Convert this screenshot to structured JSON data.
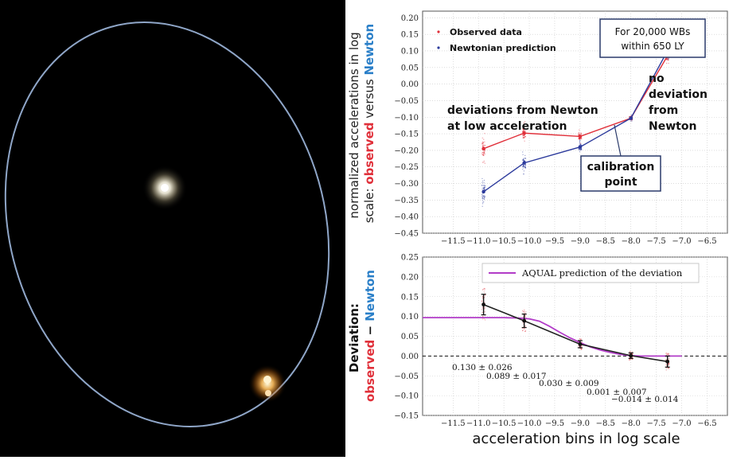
{
  "orbit_image": {
    "colors": {
      "orbit": "#8fa6c8",
      "star_white": "#ffffff",
      "star_orange": "#ffb347",
      "background": "#000000"
    }
  },
  "chart_data": [
    {
      "type": "line",
      "ylabel_parts": [
        "normalized accelerations in log",
        "scale: ",
        "observed",
        " versus ",
        "Newton"
      ],
      "xlim": [
        -12.1,
        -6.1
      ],
      "ylim": [
        -0.45,
        0.22
      ],
      "xticks": [
        -11.5,
        -11.0,
        -10.5,
        -10.0,
        -9.5,
        -9.0,
        -8.5,
        -8.0,
        -7.5,
        -7.0,
        -6.5
      ],
      "xtick_labels": [
        "−11.5",
        "−11.0",
        "−10.5",
        "−10.0",
        "−9.5",
        "−9.0",
        "−8.5",
        "−8.0",
        "−7.5",
        "−7.0",
        "−6.5"
      ],
      "yticks": [
        -0.45,
        -0.4,
        -0.35,
        -0.3,
        -0.25,
        -0.2,
        -0.15,
        -0.1,
        -0.05,
        0.0,
        0.05,
        0.1,
        0.15,
        0.2
      ],
      "ytick_labels": [
        "−0.45",
        "−0.40",
        "−0.35",
        "−0.30",
        "−0.25",
        "−0.20",
        "−0.15",
        "−0.10",
        "−0.05",
        "0.00",
        "0.05",
        "0.10",
        "0.15",
        "0.20"
      ],
      "legend": {
        "position": "top-left",
        "entries": [
          "Observed data",
          "Newtonian prediction"
        ]
      },
      "series": [
        {
          "name": "Observed data",
          "color": "#e0303a",
          "x": [
            -10.9,
            -10.1,
            -9.0,
            -8.0,
            -7.28
          ],
          "y": [
            -0.195,
            -0.148,
            -0.158,
            -0.103,
            0.085
          ]
        },
        {
          "name": "Newtonian prediction",
          "color": "#2c3a9c",
          "x": [
            -10.9,
            -10.1,
            -9.0,
            -8.0,
            -7.28
          ],
          "y": [
            -0.325,
            -0.238,
            -0.19,
            -0.103,
            0.1
          ]
        }
      ],
      "annotations": {
        "box_top": [
          "For 20,000 WBs",
          "within 650 LY"
        ],
        "deviation_text": [
          "deviations from Newton",
          "at low acceleration"
        ],
        "no_deviation": [
          "no",
          "deviation",
          "from",
          "Newton"
        ],
        "calibration": [
          "calibration",
          "point"
        ]
      }
    },
    {
      "type": "line",
      "xlabel": "acceleration bins in log scale",
      "ylabel_parts": [
        "Deviation:",
        "observed",
        " − ",
        "Newton"
      ],
      "xlim": [
        -12.1,
        -6.1
      ],
      "ylim": [
        -0.15,
        0.25
      ],
      "xticks": [
        -11.5,
        -11.0,
        -10.5,
        -10.0,
        -9.5,
        -9.0,
        -8.5,
        -8.0,
        -7.5,
        -7.0,
        -6.5
      ],
      "xtick_labels": [
        "−11.5",
        "−11.0",
        "−10.5",
        "−10.0",
        "−9.5",
        "−9.0",
        "−8.5",
        "−8.0",
        "−7.5",
        "−7.0",
        "−6.5"
      ],
      "yticks": [
        -0.15,
        -0.1,
        -0.05,
        0.0,
        0.05,
        0.1,
        0.15,
        0.2,
        0.25
      ],
      "ytick_labels": [
        "−0.15",
        "−0.10",
        "−0.05",
        "0.00",
        "0.05",
        "0.10",
        "0.15",
        "0.20",
        "0.25"
      ],
      "legend": {
        "position": "top-right",
        "entries": [
          "AQUAL prediction of the deviation"
        ]
      },
      "series": [
        {
          "name": "observed − Newton",
          "color": "#222222",
          "x": [
            -10.9,
            -10.1,
            -9.0,
            -8.0,
            -7.28
          ],
          "y": [
            0.13,
            0.089,
            0.03,
            0.001,
            -0.014
          ],
          "err": [
            0.026,
            0.017,
            0.009,
            0.007,
            0.014
          ]
        },
        {
          "name": "AQUAL prediction of the deviation",
          "color": "#b23cc8",
          "x": [
            -12.1,
            -10.5,
            -10.2,
            -10.0,
            -9.8,
            -9.6,
            -9.4,
            -9.2,
            -9.0,
            -8.8,
            -8.6,
            -8.4,
            -8.2,
            -8.0,
            -7.8,
            -7.5,
            -7.0
          ],
          "y": [
            0.097,
            0.097,
            0.096,
            0.094,
            0.088,
            0.075,
            0.06,
            0.046,
            0.034,
            0.023,
            0.015,
            0.009,
            0.004,
            0.001,
            0.0,
            0.0,
            0.0
          ]
        }
      ],
      "value_labels": [
        "0.130 ± 0.026",
        "0.089 ± 0.017",
        "0.030 ± 0.009",
        "0.001 ± 0.007",
        "−0.014 ± 0.014"
      ]
    }
  ]
}
